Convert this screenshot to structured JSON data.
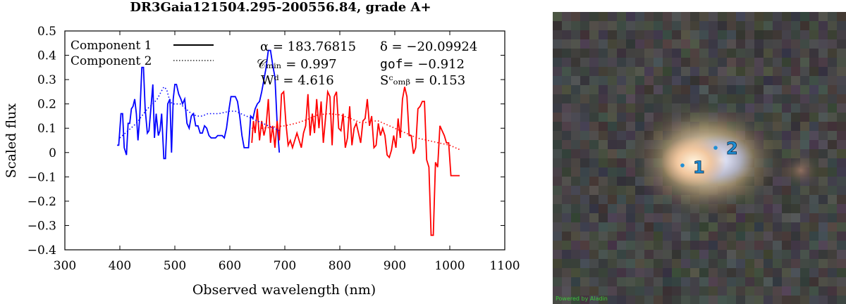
{
  "chart_data": {
    "type": "line",
    "title": "DR3Gaia121504.295-200556.84, grade A+",
    "xlabel": "Observed wavelength (nm)",
    "ylabel": "Scaled flux",
    "xlim": [
      300,
      1100
    ],
    "ylim": [
      -0.4,
      0.5
    ],
    "xticks": [
      300,
      400,
      500,
      600,
      700,
      800,
      900,
      1000,
      1100
    ],
    "xtick_labels": [
      "300",
      "400",
      "500",
      "600",
      "700",
      "800",
      "900",
      "1000",
      "1100"
    ],
    "yticks": [
      -0.4,
      -0.3,
      -0.2,
      -0.1,
      0,
      0.1,
      0.2,
      0.3,
      0.4,
      0.5
    ],
    "ytick_labels": [
      "−0.4",
      "−0.3",
      "−0.2",
      "−0.1",
      "0",
      "0.1",
      "0.2",
      "0.3",
      "0.4",
      "0.5"
    ],
    "grid": false,
    "legend": {
      "placement": "top-left",
      "entries": [
        {
          "label": "Component 1",
          "style": "solid"
        },
        {
          "label": "Component 2",
          "style": "dotted"
        }
      ]
    },
    "annotations": {
      "alpha": "α = 183.76815",
      "delta": "δ = −20.09924",
      "cmin": "𝒞ₘᵢₙ = 0.997",
      "gof_name": "gof",
      "gof_value": "= −0.912",
      "wd": "Wᵈ = 4.616",
      "scomb": "Sᶜₒₘᵦ = 0.153"
    },
    "series": [
      {
        "color": "#0000ff",
        "style": "solid",
        "x": [
          395,
          398,
          402,
          405,
          408,
          412,
          415,
          418,
          421,
          424,
          427,
          430,
          433,
          436,
          440,
          443,
          446,
          450,
          453,
          456,
          460,
          463,
          466,
          470,
          473,
          476,
          480,
          483,
          487,
          491,
          494,
          497,
          500,
          503,
          507,
          511,
          514,
          518,
          522,
          526,
          530,
          534,
          538,
          542,
          546,
          550,
          554,
          558,
          562,
          566,
          570,
          574,
          578,
          582,
          586,
          590,
          594,
          598,
          602,
          606,
          610,
          614,
          618,
          622,
          626,
          630,
          634,
          638,
          642,
          646,
          650,
          654,
          658,
          662,
          666,
          670,
          674,
          678,
          682,
          686,
          690
        ],
        "y": [
          0.03,
          0.03,
          0.16,
          0.16,
          0.02,
          -0.01,
          0.12,
          0.12,
          0.18,
          0.19,
          0.22,
          0.16,
          0.05,
          0.14,
          0.35,
          0.35,
          0.18,
          0.08,
          0.09,
          0.17,
          0.28,
          0.06,
          0.16,
          0.07,
          0.09,
          0.16,
          -0.025,
          -0.025,
          0.2,
          0.22,
          0.0,
          0.22,
          0.28,
          0.28,
          0.24,
          0.22,
          0.2,
          0.22,
          0.12,
          0.1,
          0.15,
          0.16,
          0.11,
          0.11,
          0.08,
          0.08,
          0.11,
          0.1,
          0.07,
          0.06,
          0.06,
          0.06,
          0.07,
          0.07,
          0.07,
          0.06,
          0.1,
          0.17,
          0.23,
          0.23,
          0.23,
          0.21,
          0.15,
          0.07,
          0.02,
          0.02,
          0.02,
          0.15,
          0.14,
          0.18,
          0.2,
          0.21,
          0.25,
          0.3,
          0.35,
          0.42,
          0.42,
          0.36,
          0.31,
          0.12,
          0.0
        ]
      },
      {
        "color": "#ff0000",
        "style": "solid",
        "x": [
          640,
          643,
          646,
          650,
          654,
          658,
          662,
          666,
          670,
          674,
          678,
          682,
          686,
          690,
          694,
          698,
          702,
          706,
          710,
          714,
          718,
          722,
          726,
          730,
          734,
          738,
          742,
          746,
          750,
          754,
          758,
          762,
          766,
          770,
          774,
          778,
          782,
          786,
          790,
          794,
          798,
          802,
          806,
          810,
          814,
          818,
          822,
          826,
          830,
          834,
          838,
          842,
          846,
          850,
          854,
          858,
          862,
          866,
          870,
          874,
          878,
          882,
          886,
          890,
          894,
          898,
          902,
          906,
          910,
          914,
          918,
          922,
          926,
          930,
          934,
          938,
          942,
          946,
          950,
          954,
          958,
          962,
          966,
          970,
          974,
          978,
          982,
          986,
          990,
          994,
          998,
          1002,
          1006,
          1010,
          1014,
          1018
        ],
        "y": [
          0.04,
          0.13,
          0.08,
          0.18,
          0.05,
          0.13,
          0.07,
          0.11,
          0.22,
          0.04,
          0.11,
          0.02,
          0.13,
          0.05,
          0.24,
          0.25,
          0.12,
          0.03,
          0.05,
          0.02,
          0.05,
          0.08,
          0.05,
          0.02,
          0.08,
          0.11,
          0.24,
          0.07,
          0.16,
          0.08,
          0.22,
          0.1,
          0.21,
          0.04,
          0.14,
          0.25,
          0.23,
          0.03,
          0.23,
          0.25,
          0.1,
          0.09,
          0.16,
          0.02,
          0.06,
          0.19,
          0.03,
          0.1,
          0.12,
          0.08,
          0.04,
          0.13,
          0.14,
          0.22,
          0.11,
          0.15,
          0.02,
          0.03,
          0.12,
          0.07,
          0.1,
          0.07,
          -0.01,
          -0.02,
          0.01,
          0.07,
          0.02,
          0.14,
          0.06,
          0.22,
          0.27,
          0.23,
          0.07,
          0.07,
          -0.005,
          0.02,
          0.18,
          0.19,
          0.21,
          0.21,
          -0.03,
          -0.06,
          -0.34,
          -0.34,
          -0.04,
          -0.06,
          0.11,
          0.09,
          0.07,
          0.04,
          0.04,
          -0.095,
          -0.095,
          -0.095,
          -0.095,
          -0.095
        ]
      },
      {
        "color": "#0000ff",
        "style": "dotted",
        "x": [
          400,
          410,
          420,
          430,
          440,
          450,
          460,
          468,
          475,
          480,
          485,
          490,
          495,
          500,
          510,
          520,
          530,
          540,
          550,
          560,
          570,
          580,
          590,
          600,
          610,
          620,
          630,
          640,
          650,
          660,
          670,
          680,
          690
        ],
        "y": [
          0.06,
          0.08,
          0.1,
          0.12,
          0.15,
          0.18,
          0.2,
          0.22,
          0.25,
          0.27,
          0.26,
          0.22,
          0.2,
          0.2,
          0.2,
          0.18,
          0.16,
          0.15,
          0.15,
          0.16,
          0.16,
          0.16,
          0.165,
          0.17,
          0.17,
          0.16,
          0.15,
          0.14,
          0.13,
          0.12,
          0.11,
          0.1,
          0.09
        ]
      },
      {
        "color": "#ff0000",
        "style": "dotted",
        "x": [
          640,
          660,
          680,
          700,
          720,
          740,
          760,
          780,
          800,
          820,
          840,
          860,
          870,
          880,
          900,
          920,
          940,
          960,
          980,
          1000,
          1020
        ],
        "y": [
          0.1,
          0.1,
          0.105,
          0.11,
          0.12,
          0.135,
          0.155,
          0.16,
          0.155,
          0.14,
          0.12,
          0.13,
          0.13,
          0.12,
          0.1,
          0.08,
          0.06,
          0.05,
          0.04,
          0.03,
          0.01
        ]
      }
    ]
  },
  "sky_panel": {
    "credit": "Powered by Aladin",
    "markers": [
      {
        "label": "1",
        "color": "#1f8fd6"
      },
      {
        "label": "2",
        "color": "#1f8fd6"
      }
    ]
  }
}
